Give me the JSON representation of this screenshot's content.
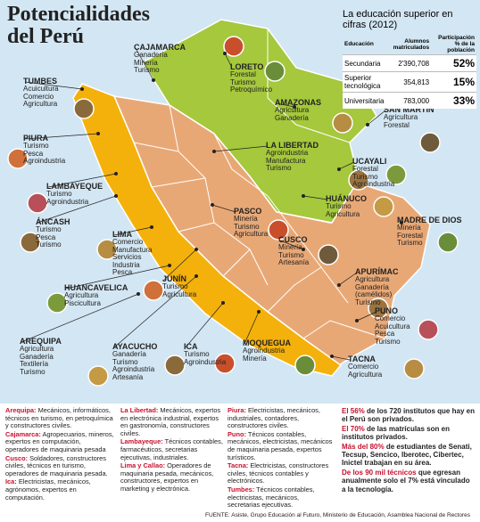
{
  "title": "Potencialidades del Perú",
  "regions": [
    {
      "name": "TUMBES",
      "items": [
        "Acuicultura",
        "Comercio",
        "Agricultura"
      ]
    },
    {
      "name": "CAJAMARCA",
      "items": [
        "Ganadería",
        "Minería",
        "Turismo"
      ]
    },
    {
      "name": "LORETO",
      "items": [
        "Forestal",
        "Turismo",
        "Petroquímico"
      ]
    },
    {
      "name": "AMAZONAS",
      "items": [
        "Agricultura",
        "Ganadería"
      ]
    },
    {
      "name": "SAN MARTÍN",
      "items": [
        "Agricultura",
        "Forestal"
      ]
    },
    {
      "name": "PIURA",
      "items": [
        "Turismo",
        "Pesca",
        "Agroindustria"
      ]
    },
    {
      "name": "LA LIBERTAD",
      "items": [
        "Agroindustria",
        "Manufactura",
        "Turismo"
      ]
    },
    {
      "name": "UCAYALI",
      "items": [
        "Forestal",
        "Turismo",
        "Agroindustria"
      ]
    },
    {
      "name": "LAMBAYEQUE",
      "items": [
        "Turismo",
        "Agroindustria"
      ]
    },
    {
      "name": "HUÁNUCO",
      "items": [
        "Turismo",
        "Agricultura"
      ]
    },
    {
      "name": "ÁNCASH",
      "items": [
        "Turismo",
        "Pesca",
        "Turismo"
      ]
    },
    {
      "name": "PASCO",
      "items": [
        "Minería",
        "Turismo",
        "Agricultura"
      ]
    },
    {
      "name": "MADRE DE DIOS",
      "items": [
        "Minería",
        "Forestal",
        "Turismo"
      ]
    },
    {
      "name": "LIMA",
      "items": [
        "Comercio",
        "Manufactura",
        "Servicios",
        "Industria",
        "Pesca"
      ]
    },
    {
      "name": "CUSCO",
      "items": [
        "Minería",
        "Turismo",
        "Artesanía"
      ]
    },
    {
      "name": "JUNÍN",
      "items": [
        "Turismo",
        "Agricultura"
      ]
    },
    {
      "name": "APURÍMAC",
      "items": [
        "Agricultura",
        "Ganadería",
        "(camélidos)",
        "Turismo"
      ]
    },
    {
      "name": "HUANCAVELICA",
      "items": [
        "Agricultura",
        "Piscicultura"
      ]
    },
    {
      "name": "PUNO",
      "items": [
        "Comercio",
        "Acuicultura",
        "Pesca",
        "Turismo"
      ]
    },
    {
      "name": "AREQUIPA",
      "items": [
        "Agricultura",
        "Ganadería",
        "Textilería",
        "Turismo"
      ]
    },
    {
      "name": "AYACUCHO",
      "items": [
        "Ganadería",
        "Turismo",
        "Agroindustria",
        "Artesanía"
      ]
    },
    {
      "name": "ICA",
      "items": [
        "Turismo",
        "Agroindustria"
      ]
    },
    {
      "name": "MOQUEGUA",
      "items": [
        "Agroindustria",
        "Minería"
      ]
    },
    {
      "name": "TACNA",
      "items": [
        "Comercio",
        "Agricultura"
      ]
    }
  ],
  "education": {
    "title": "La educación superior en cifras (2012)",
    "headers": [
      "Educación",
      "Alumnos matriculados",
      "Participación % de la población"
    ],
    "rows": [
      [
        "Secundaria",
        "2'390,708",
        "52%"
      ],
      [
        "Superior tecnológica",
        "354,813",
        "15%"
      ],
      [
        "Universitaria",
        "783,000",
        "33%"
      ]
    ]
  },
  "columns": [
    [
      {
        "name": "Arequipa:",
        "text": "Mecánicos, informáticos, técnicos en turismo, en petroquímica y constructores civiles."
      },
      {
        "name": "Cajamarca:",
        "text": "Agropecuarios, mineros, expertos en computación, operadores de maquinaria pesada"
      },
      {
        "name": "Cusco:",
        "text": "Soldadores, constructores civiles, técnicos en turismo, operadores de maquinaria pesada."
      },
      {
        "name": "Ica:",
        "text": "Electricistas, mecánicos, agrónomos, expertos en computación."
      }
    ],
    [
      {
        "name": "La Libertad:",
        "text": "Mecánicos, expertos en electrónica industrial, expertos en gastronomía, constructores civiles."
      },
      {
        "name": "Lambayeque:",
        "text": "Técnicos contables, farmacéuticos, secretarias ejecutivas, industriales."
      },
      {
        "name": "Lima y Callao:",
        "text": "Operadores de maquinaria pesada, mecánicos, constructores, expertos en marketing y electrónica."
      }
    ],
    [
      {
        "name": "Piura:",
        "text": "Electricistas, mecánicos, industriales, contadores, constructores civiles."
      },
      {
        "name": "Puno:",
        "text": "Técnicos contables, mecánicos, electricistas, mecánicos de maquinaria pesada, expertos turísticos."
      },
      {
        "name": "Tacna:",
        "text": "Electricistas, constructores civiles, técnicos contables y electrónicos."
      },
      {
        "name": "Tumbes:",
        "text": "Técnicos contables, electricistas, mecánicos, secretarias ejecutivas."
      }
    ]
  ],
  "facts": [
    {
      "highlight": "El 56%",
      "text": "de los 720 institutos que hay en el Perú son privados."
    },
    {
      "highlight": "El 70%",
      "text": "de las matrículas son en institutos privados."
    },
    {
      "highlight": "Más del 80%",
      "text": "de estudiantes de Senati, Tecsup, Sencico, Iberotec, Cibertec, Inictel trabajan en su área."
    },
    {
      "highlight": "De los 90 mil técnicos",
      "text": "que egresan anualmente solo el 7% está vinculado a la tecnología."
    }
  ],
  "source": "FUENTE: Asiste, Grupo Educación al Futuro, Ministerio de Educación, Asamblea Nacional de Rectores"
}
